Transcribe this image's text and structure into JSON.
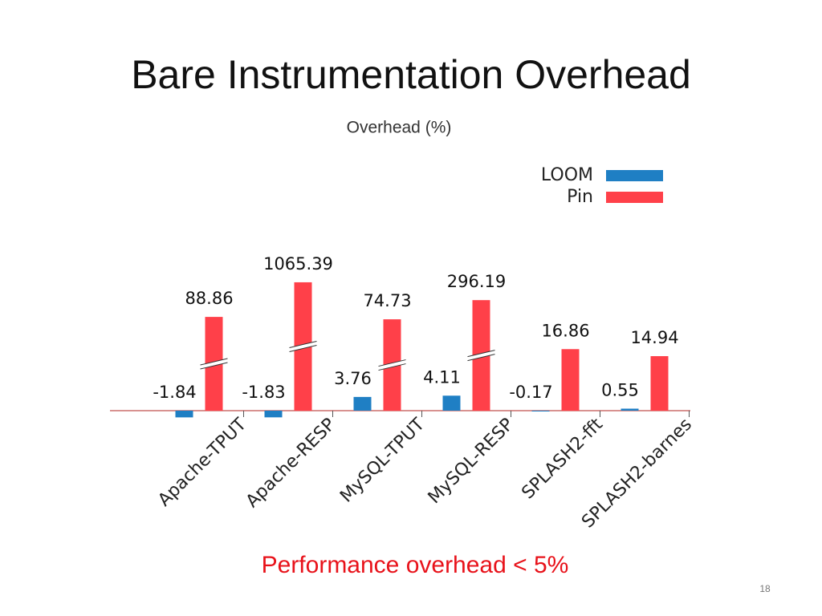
{
  "title": "Bare Instrumentation Overhead",
  "chart_data": {
    "type": "bar",
    "title": "Overhead (%)",
    "categories": [
      "Apache-TPUT",
      "Apache-RESP",
      "MySQL-TPUT",
      "MySQL-RESP",
      "SPLASH2-fft",
      "SPLASH2-barnes"
    ],
    "series": [
      {
        "name": "LOOM",
        "color": "#1f7fc4",
        "values": [
          -1.84,
          -1.83,
          3.76,
          4.11,
          -0.17,
          0.55
        ]
      },
      {
        "name": "Pin",
        "color": "#ff4049",
        "values": [
          88.86,
          1065.39,
          74.73,
          296.19,
          16.86,
          14.94
        ]
      }
    ],
    "legend": "upper right"
  },
  "footer": "Performance overhead < 5%",
  "page_number": "18"
}
